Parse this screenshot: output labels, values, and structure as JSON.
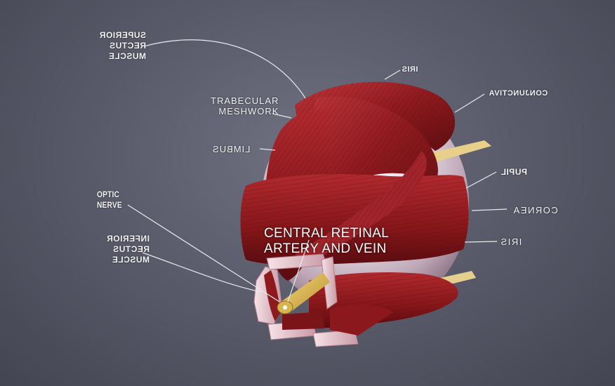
{
  "labels": {
    "superior_rectus": [
      "SUPERIOR",
      "RECTUS",
      "MUSCLE"
    ],
    "iris_top": "IRIS",
    "trabecular": [
      "TRABECULAR",
      "MESHWORK"
    ],
    "conjunctiva": "CONJUNCTIVA",
    "limbus": "LIMBUS",
    "pupil": "PUPIL",
    "optic_nerve": [
      "OPTIC",
      "NERVE"
    ],
    "cornea": "CORNEA",
    "inferior_rectus": [
      "INFERIOR",
      "RECTUS",
      "MUSCLE"
    ],
    "iris": "IRIS",
    "central_retinal": [
      "CENTRAL RETINAL",
      "ARTERY AND VEIN"
    ]
  },
  "colors": {
    "background": "#5b5c6b",
    "muscle": "#8e1a1e",
    "muscle_light": "#b3282c",
    "globe": "#e8dfe6",
    "nerve": "#e0c46a",
    "leader": "#e8e8ee"
  }
}
